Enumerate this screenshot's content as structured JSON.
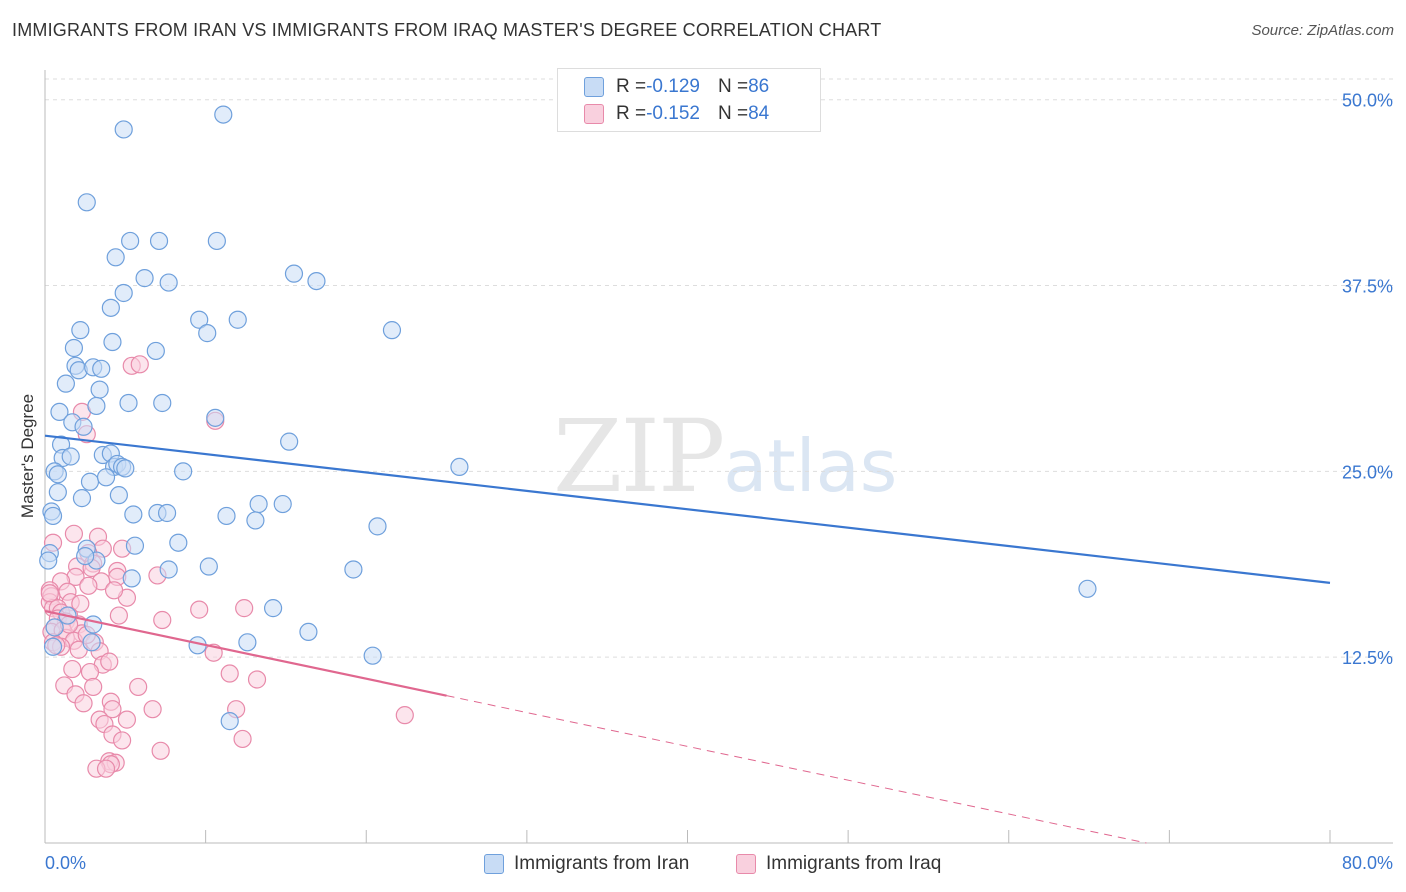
{
  "title": "IMMIGRANTS FROM IRAN VS IMMIGRANTS FROM IRAQ MASTER'S DEGREE CORRELATION CHART",
  "source": "Source: ZipAtlas.com",
  "watermark": {
    "zip": "ZIP",
    "atlas": "atlas"
  },
  "legend": {
    "iran": {
      "r_label": "R = ",
      "r_value": "-0.129",
      "n_label": "N = ",
      "n_value": "86"
    },
    "iraq": {
      "r_label": "R = ",
      "r_value": "-0.152",
      "n_label": "N = ",
      "n_value": "84"
    }
  },
  "colors": {
    "iran_fill": "#c8dcf5",
    "iran_stroke": "#6fa0dc",
    "iran_line": "#3a77d0",
    "iraq_fill": "#f9d0de",
    "iraq_stroke": "#e88aaa",
    "iraq_line": "#e0678f",
    "grid": "#dddddd",
    "tick_label": "#3a77d0"
  },
  "chart_data": {
    "type": "scatter",
    "title": "IMMIGRANTS FROM IRAN VS IMMIGRANTS FROM IRAQ MASTER'S DEGREE CORRELATION CHART",
    "xlabel": "",
    "ylabel": "Master's Degree",
    "xlim": [
      0,
      80
    ],
    "ylim": [
      0,
      52
    ],
    "x_tick_labels": [
      "0.0%",
      "80.0%"
    ],
    "y_ticks": [
      12.5,
      25.0,
      37.5,
      50.0
    ],
    "y_tick_labels": [
      "12.5%",
      "25.0%",
      "37.5%",
      "50.0%"
    ],
    "grid": true,
    "series": [
      {
        "name": "Immigrants from Iran",
        "R": -0.129,
        "N": 86,
        "trend": {
          "x": [
            0,
            80
          ],
          "y": [
            27.4,
            17.5
          ],
          "dashed_from": null
        },
        "points": [
          [
            11.1,
            49.0
          ],
          [
            4.9,
            48.0
          ],
          [
            2.6,
            43.1
          ],
          [
            5.3,
            40.5
          ],
          [
            7.1,
            40.5
          ],
          [
            10.7,
            40.5
          ],
          [
            4.4,
            39.4
          ],
          [
            15.5,
            38.3
          ],
          [
            16.9,
            37.8
          ],
          [
            6.2,
            38.0
          ],
          [
            7.7,
            37.7
          ],
          [
            4.9,
            37.0
          ],
          [
            4.1,
            36.0
          ],
          [
            9.6,
            35.2
          ],
          [
            12.0,
            35.2
          ],
          [
            21.6,
            34.5
          ],
          [
            10.1,
            34.3
          ],
          [
            2.2,
            34.5
          ],
          [
            4.2,
            33.7
          ],
          [
            1.8,
            33.3
          ],
          [
            6.9,
            33.1
          ],
          [
            1.9,
            32.1
          ],
          [
            2.1,
            31.8
          ],
          [
            3.0,
            32.0
          ],
          [
            3.5,
            31.9
          ],
          [
            1.3,
            30.9
          ],
          [
            3.4,
            30.5
          ],
          [
            0.9,
            29.0
          ],
          [
            3.2,
            29.4
          ],
          [
            5.2,
            29.6
          ],
          [
            7.3,
            29.6
          ],
          [
            10.6,
            28.6
          ],
          [
            1.7,
            28.3
          ],
          [
            2.4,
            28.0
          ],
          [
            15.2,
            27.0
          ],
          [
            1.0,
            26.8
          ],
          [
            1.1,
            25.9
          ],
          [
            1.6,
            26.0
          ],
          [
            3.6,
            26.1
          ],
          [
            4.1,
            26.2
          ],
          [
            4.3,
            25.3
          ],
          [
            4.5,
            25.5
          ],
          [
            4.8,
            25.3
          ],
          [
            5.0,
            25.2
          ],
          [
            8.6,
            25.0
          ],
          [
            25.8,
            25.3
          ],
          [
            0.6,
            25.0
          ],
          [
            0.8,
            24.8
          ],
          [
            2.8,
            24.3
          ],
          [
            3.8,
            24.6
          ],
          [
            4.6,
            23.4
          ],
          [
            0.8,
            23.6
          ],
          [
            13.3,
            22.8
          ],
          [
            14.8,
            22.8
          ],
          [
            7.0,
            22.2
          ],
          [
            7.6,
            22.2
          ],
          [
            0.4,
            22.3
          ],
          [
            0.5,
            22.0
          ],
          [
            5.5,
            22.1
          ],
          [
            11.3,
            22.0
          ],
          [
            13.1,
            21.7
          ],
          [
            20.7,
            21.3
          ],
          [
            8.3,
            20.2
          ],
          [
            5.6,
            20.0
          ],
          [
            2.6,
            19.8
          ],
          [
            0.3,
            19.5
          ],
          [
            0.2,
            19.0
          ],
          [
            3.2,
            19.0
          ],
          [
            2.5,
            19.3
          ],
          [
            10.2,
            18.6
          ],
          [
            19.2,
            18.4
          ],
          [
            7.7,
            18.4
          ],
          [
            5.4,
            17.8
          ],
          [
            64.9,
            17.1
          ],
          [
            14.2,
            15.8
          ],
          [
            16.4,
            14.2
          ],
          [
            3.0,
            14.7
          ],
          [
            2.9,
            13.5
          ],
          [
            0.5,
            13.2
          ],
          [
            9.5,
            13.3
          ],
          [
            12.6,
            13.5
          ],
          [
            20.4,
            12.6
          ],
          [
            11.5,
            8.2
          ],
          [
            2.3,
            23.2
          ],
          [
            1.4,
            15.3
          ],
          [
            0.6,
            14.5
          ]
        ]
      },
      {
        "name": "Immigrants from Iraq",
        "R": -0.152,
        "N": 84,
        "trend": {
          "x": [
            0,
            80
          ],
          "y": [
            15.6,
            -2.6
          ],
          "dashed_from": 25
        },
        "points": [
          [
            5.4,
            32.1
          ],
          [
            5.9,
            32.2
          ],
          [
            10.6,
            28.4
          ],
          [
            2.3,
            29.0
          ],
          [
            2.6,
            27.5
          ],
          [
            1.8,
            20.8
          ],
          [
            3.3,
            20.6
          ],
          [
            0.5,
            20.2
          ],
          [
            3.6,
            19.8
          ],
          [
            4.8,
            19.8
          ],
          [
            2.7,
            19.5
          ],
          [
            3.0,
            18.8
          ],
          [
            2.0,
            18.6
          ],
          [
            2.9,
            18.5
          ],
          [
            4.5,
            18.3
          ],
          [
            1.9,
            17.9
          ],
          [
            4.5,
            17.9
          ],
          [
            1.0,
            17.6
          ],
          [
            3.5,
            17.6
          ],
          [
            2.7,
            17.3
          ],
          [
            0.3,
            17.0
          ],
          [
            1.4,
            16.9
          ],
          [
            0.4,
            16.6
          ],
          [
            5.1,
            16.5
          ],
          [
            1.6,
            16.2
          ],
          [
            2.2,
            16.1
          ],
          [
            0.3,
            16.2
          ],
          [
            0.5,
            15.8
          ],
          [
            0.8,
            15.8
          ],
          [
            9.6,
            15.7
          ],
          [
            12.4,
            15.8
          ],
          [
            1.0,
            15.5
          ],
          [
            1.5,
            15.3
          ],
          [
            0.8,
            15.1
          ],
          [
            4.6,
            15.3
          ],
          [
            7.3,
            15.0
          ],
          [
            1.3,
            14.9
          ],
          [
            2.1,
            14.7
          ],
          [
            0.6,
            14.5
          ],
          [
            0.4,
            14.2
          ],
          [
            1.1,
            14.3
          ],
          [
            2.3,
            14.1
          ],
          [
            1.3,
            13.8
          ],
          [
            1.8,
            13.6
          ],
          [
            0.5,
            13.5
          ],
          [
            3.1,
            13.5
          ],
          [
            1.0,
            13.2
          ],
          [
            0.7,
            13.3
          ],
          [
            2.1,
            13.0
          ],
          [
            3.4,
            12.9
          ],
          [
            10.5,
            12.8
          ],
          [
            3.6,
            12.0
          ],
          [
            4.0,
            12.2
          ],
          [
            1.7,
            11.7
          ],
          [
            2.8,
            11.5
          ],
          [
            11.5,
            11.4
          ],
          [
            13.2,
            11.0
          ],
          [
            1.2,
            10.6
          ],
          [
            3.0,
            10.5
          ],
          [
            5.8,
            10.5
          ],
          [
            1.9,
            10.0
          ],
          [
            2.4,
            9.4
          ],
          [
            4.1,
            9.5
          ],
          [
            4.2,
            9.0
          ],
          [
            6.7,
            9.0
          ],
          [
            11.9,
            9.0
          ],
          [
            22.4,
            8.6
          ],
          [
            3.4,
            8.3
          ],
          [
            3.7,
            8.0
          ],
          [
            5.1,
            8.3
          ],
          [
            4.2,
            7.3
          ],
          [
            4.8,
            6.9
          ],
          [
            12.3,
            7.0
          ],
          [
            7.2,
            6.2
          ],
          [
            4.0,
            5.5
          ],
          [
            4.4,
            5.4
          ],
          [
            4.1,
            5.3
          ],
          [
            3.2,
            5.0
          ],
          [
            3.8,
            5.0
          ],
          [
            7.0,
            18.0
          ],
          [
            0.3,
            16.8
          ],
          [
            4.3,
            17.0
          ],
          [
            1.5,
            14.7
          ],
          [
            2.6,
            14.0
          ]
        ]
      }
    ]
  }
}
